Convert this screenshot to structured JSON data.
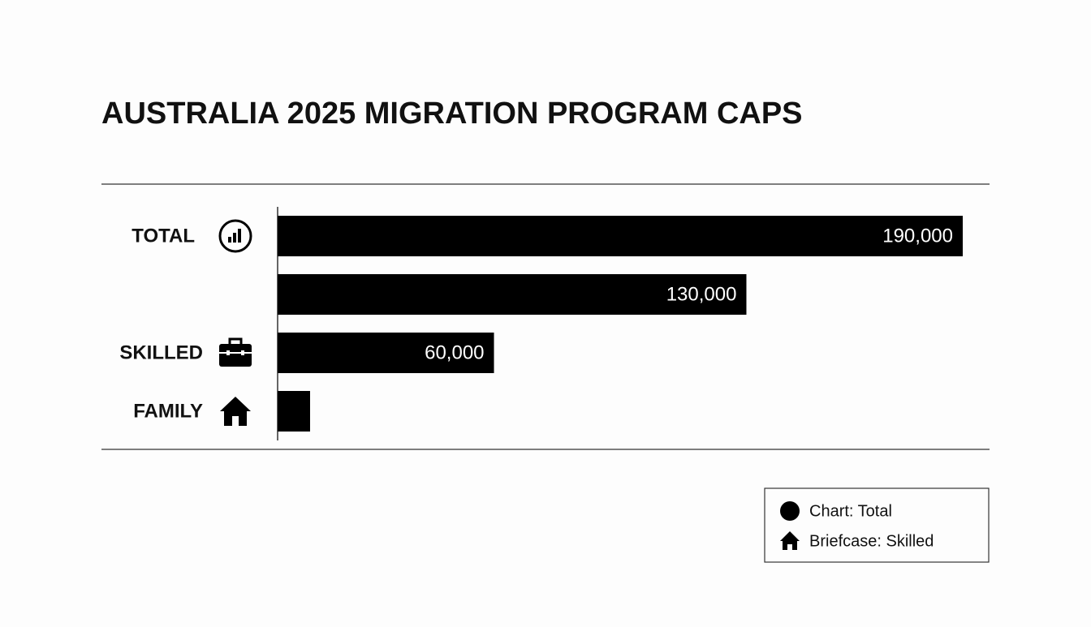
{
  "chart_data": {
    "type": "bar",
    "orientation": "horizontal",
    "title": "AUSTRALIA 2025 MIGRATION PROGRAM CAPS",
    "categories": [
      "TOTAL",
      null,
      "SKILLED",
      "FAMILY"
    ],
    "values": [
      190000,
      130000,
      60000,
      9000
    ],
    "value_labels": [
      "190,000",
      "130,000",
      "60,000",
      null
    ],
    "color": "#000000",
    "legend": [
      "Chart: Total",
      "Briefcase: Skilled"
    ]
  }
}
